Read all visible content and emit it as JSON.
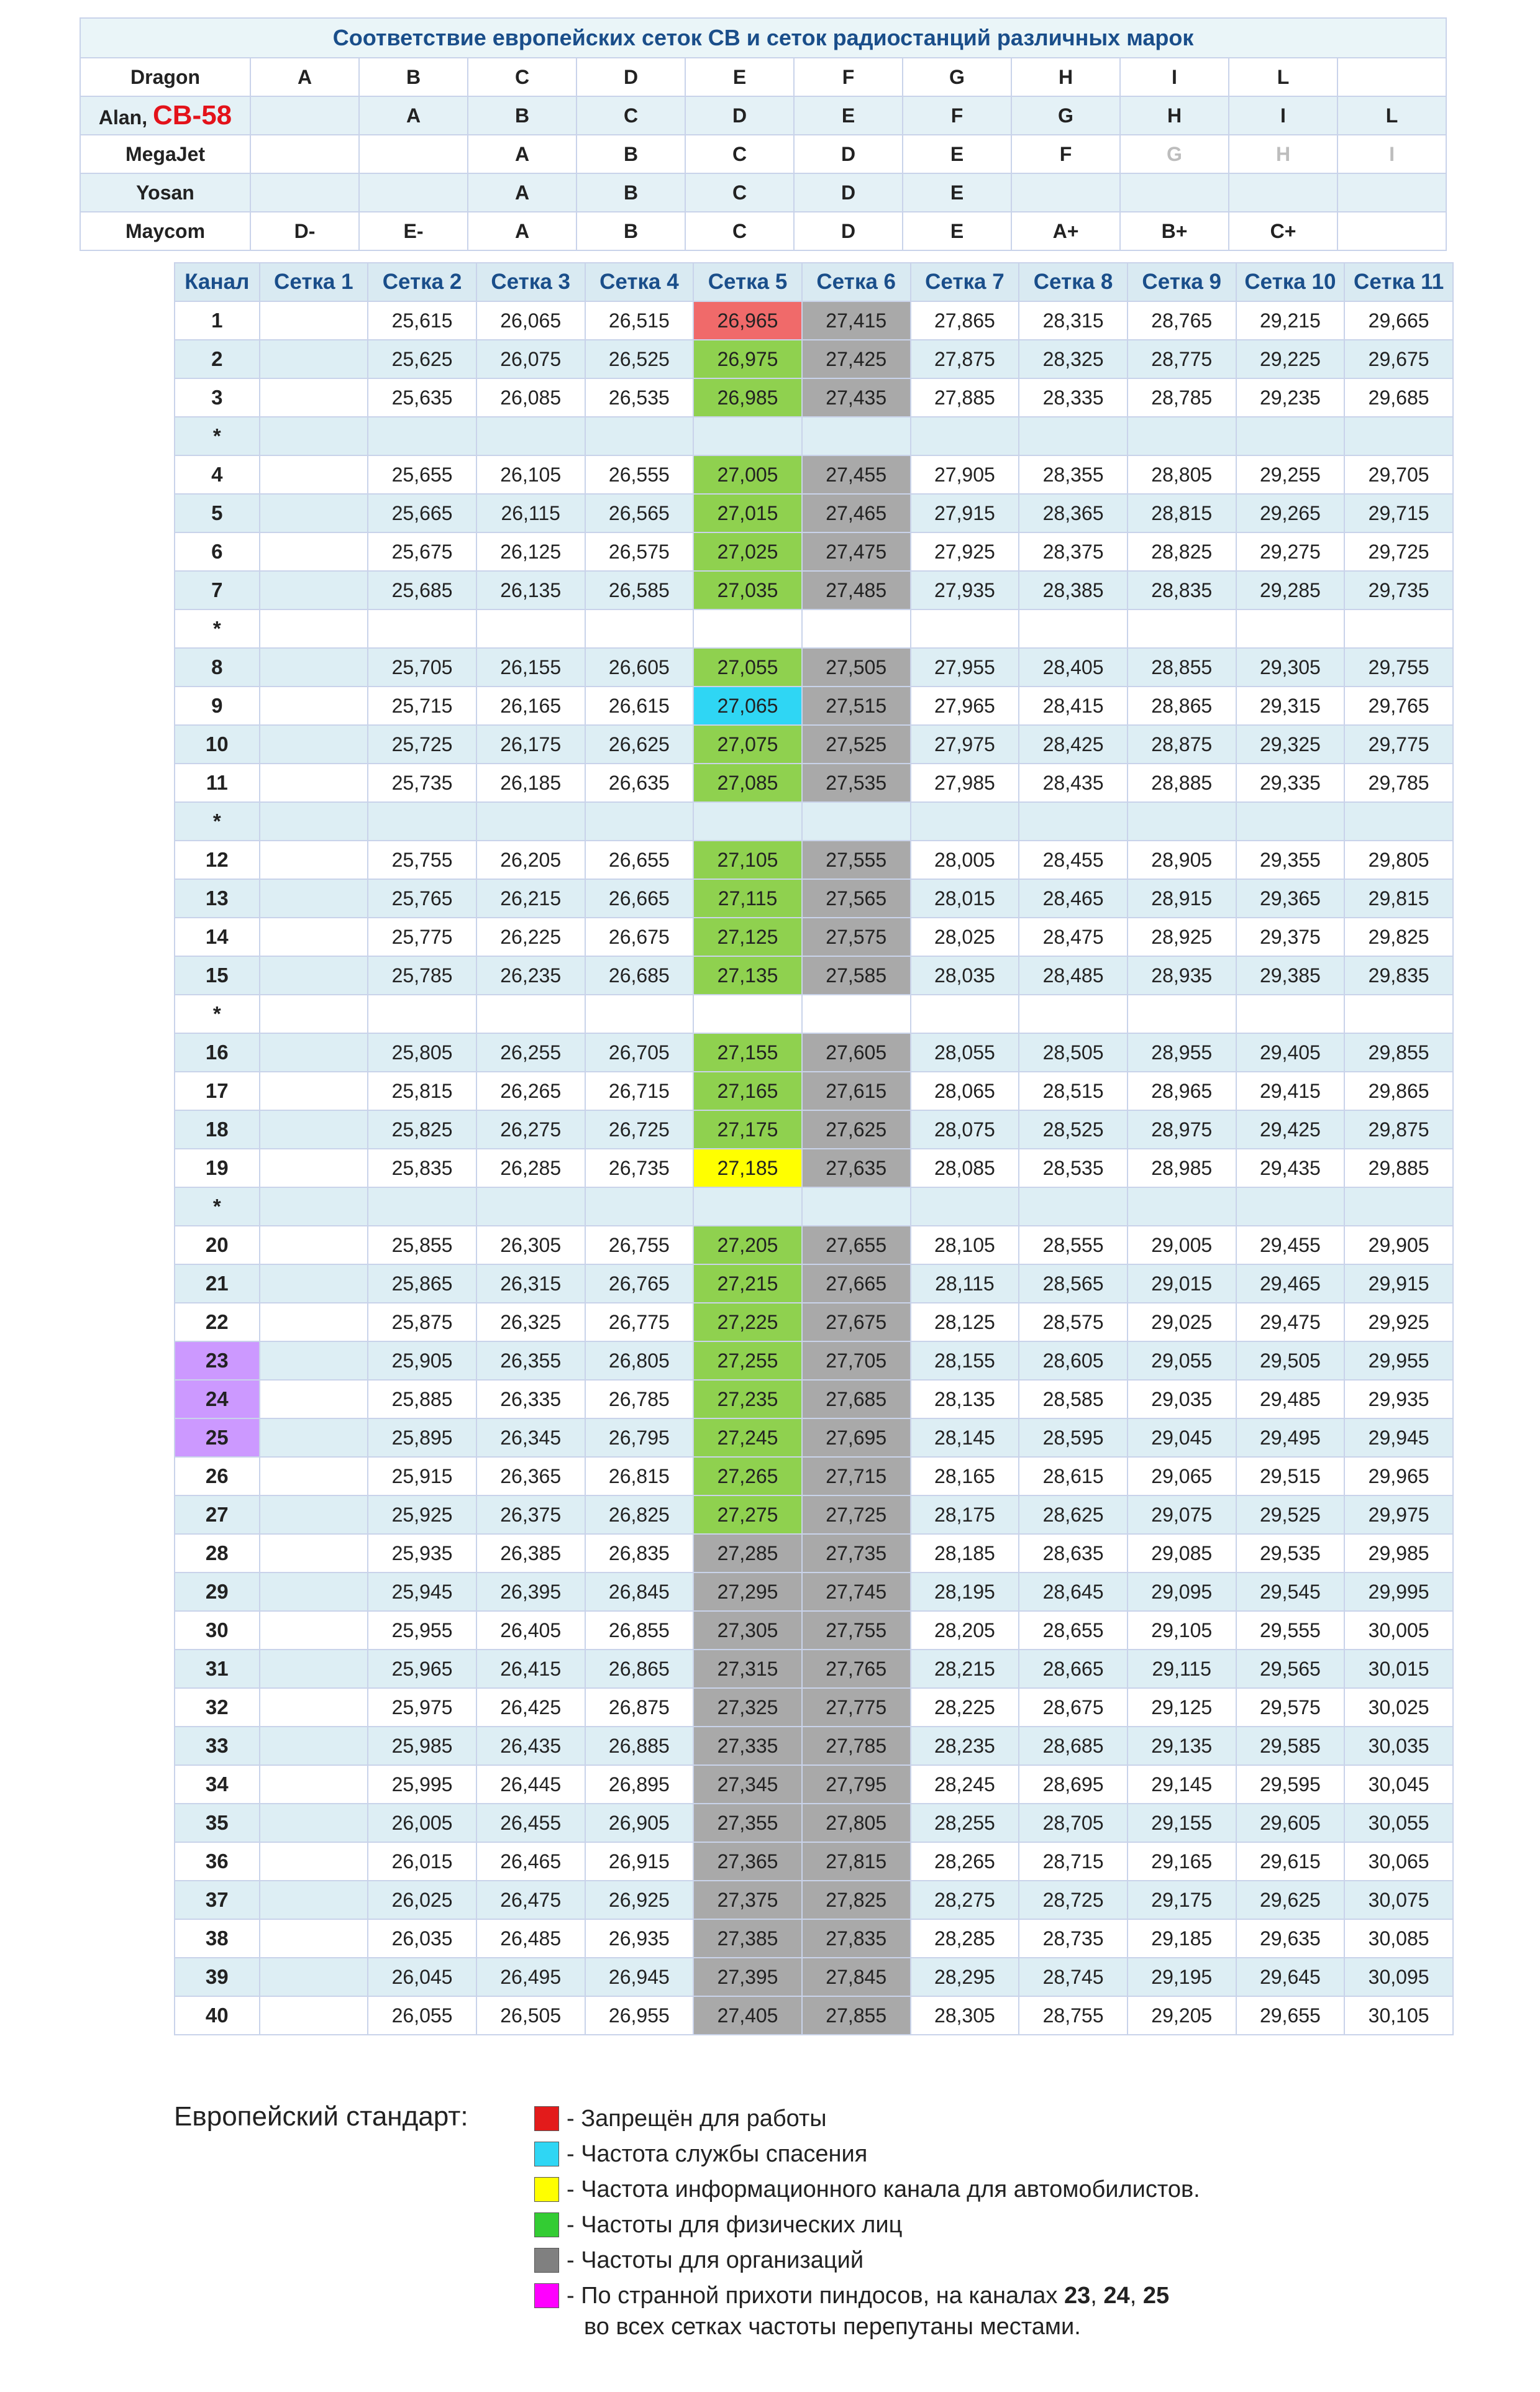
{
  "brand_table": {
    "title": "Соответствие европейских сеток СВ и сеток радиостанций различных марок",
    "rows": [
      {
        "brand": "Dragon",
        "cells": [
          "A",
          "B",
          "C",
          "D",
          "E",
          "F",
          "G",
          "H",
          "I",
          "L",
          ""
        ]
      },
      {
        "brand": "Alan, ",
        "brand_highlight": "CB-58",
        "cells": [
          "",
          "A",
          "B",
          "C",
          "D",
          "E",
          "F",
          "G",
          "H",
          "I",
          "L"
        ]
      },
      {
        "brand": "MegaJet",
        "cells": [
          "",
          "",
          "A",
          "B",
          "C",
          "D",
          "E",
          "F",
          "G",
          "H",
          "I"
        ]
      },
      {
        "brand": "Yosan",
        "cells": [
          "",
          "",
          "A",
          "B",
          "C",
          "D",
          "E",
          "",
          "",
          "",
          ""
        ]
      },
      {
        "brand": "Maycom",
        "cells": [
          "D-",
          "E-",
          "A",
          "B",
          "C",
          "D",
          "E",
          "A+",
          "B+",
          "C+",
          ""
        ]
      }
    ]
  },
  "grid": {
    "headers": [
      "Канал",
      "Сетка 1",
      "Сетка 2",
      "Сетка 3",
      "Сетка 4",
      "Сетка 5",
      "Сетка 6",
      "Сетка 7",
      "Сетка 8",
      "Сетка 9",
      "Сетка 10",
      "Сетка 11"
    ],
    "rows": [
      {
        "ch": "1",
        "v": [
          "",
          "25,615",
          "26,065",
          "26,515",
          "26,965",
          "27,415",
          "27,865",
          "28,315",
          "28,765",
          "29,215",
          "29,665"
        ],
        "c5": "red"
      },
      {
        "ch": "2",
        "v": [
          "",
          "25,625",
          "26,075",
          "26,525",
          "26,975",
          "27,425",
          "27,875",
          "28,325",
          "28,775",
          "29,225",
          "29,675"
        ],
        "c5": "green"
      },
      {
        "ch": "3",
        "v": [
          "",
          "25,635",
          "26,085",
          "26,535",
          "26,985",
          "27,435",
          "27,885",
          "28,335",
          "28,785",
          "29,235",
          "29,685"
        ],
        "c5": "green"
      },
      {
        "ch": "*",
        "v": [
          "",
          "",
          "",
          "",
          "",
          "",
          "",
          "",
          "",
          "",
          ""
        ],
        "sep": true
      },
      {
        "ch": "4",
        "v": [
          "",
          "25,655",
          "26,105",
          "26,555",
          "27,005",
          "27,455",
          "27,905",
          "28,355",
          "28,805",
          "29,255",
          "29,705"
        ],
        "c5": "green"
      },
      {
        "ch": "5",
        "v": [
          "",
          "25,665",
          "26,115",
          "26,565",
          "27,015",
          "27,465",
          "27,915",
          "28,365",
          "28,815",
          "29,265",
          "29,715"
        ],
        "c5": "green"
      },
      {
        "ch": "6",
        "v": [
          "",
          "25,675",
          "26,125",
          "26,575",
          "27,025",
          "27,475",
          "27,925",
          "28,375",
          "28,825",
          "29,275",
          "29,725"
        ],
        "c5": "green"
      },
      {
        "ch": "7",
        "v": [
          "",
          "25,685",
          "26,135",
          "26,585",
          "27,035",
          "27,485",
          "27,935",
          "28,385",
          "28,835",
          "29,285",
          "29,735"
        ],
        "c5": "green"
      },
      {
        "ch": "*",
        "v": [
          "",
          "",
          "",
          "",
          "",
          "",
          "",
          "",
          "",
          "",
          ""
        ],
        "sep": true
      },
      {
        "ch": "8",
        "v": [
          "",
          "25,705",
          "26,155",
          "26,605",
          "27,055",
          "27,505",
          "27,955",
          "28,405",
          "28,855",
          "29,305",
          "29,755"
        ],
        "c5": "green"
      },
      {
        "ch": "9",
        "v": [
          "",
          "25,715",
          "26,165",
          "26,615",
          "27,065",
          "27,515",
          "27,965",
          "28,415",
          "28,865",
          "29,315",
          "29,765"
        ],
        "c5": "cyan"
      },
      {
        "ch": "10",
        "v": [
          "",
          "25,725",
          "26,175",
          "26,625",
          "27,075",
          "27,525",
          "27,975",
          "28,425",
          "28,875",
          "29,325",
          "29,775"
        ],
        "c5": "green"
      },
      {
        "ch": "11",
        "v": [
          "",
          "25,735",
          "26,185",
          "26,635",
          "27,085",
          "27,535",
          "27,985",
          "28,435",
          "28,885",
          "29,335",
          "29,785"
        ],
        "c5": "green"
      },
      {
        "ch": "*",
        "v": [
          "",
          "",
          "",
          "",
          "",
          "",
          "",
          "",
          "",
          "",
          ""
        ],
        "sep": true
      },
      {
        "ch": "12",
        "v": [
          "",
          "25,755",
          "26,205",
          "26,655",
          "27,105",
          "27,555",
          "28,005",
          "28,455",
          "28,905",
          "29,355",
          "29,805"
        ],
        "c5": "green"
      },
      {
        "ch": "13",
        "v": [
          "",
          "25,765",
          "26,215",
          "26,665",
          "27,115",
          "27,565",
          "28,015",
          "28,465",
          "28,915",
          "29,365",
          "29,815"
        ],
        "c5": "green"
      },
      {
        "ch": "14",
        "v": [
          "",
          "25,775",
          "26,225",
          "26,675",
          "27,125",
          "27,575",
          "28,025",
          "28,475",
          "28,925",
          "29,375",
          "29,825"
        ],
        "c5": "green"
      },
      {
        "ch": "15",
        "v": [
          "",
          "25,785",
          "26,235",
          "26,685",
          "27,135",
          "27,585",
          "28,035",
          "28,485",
          "28,935",
          "29,385",
          "29,835"
        ],
        "c5": "green"
      },
      {
        "ch": "*",
        "v": [
          "",
          "",
          "",
          "",
          "",
          "",
          "",
          "",
          "",
          "",
          ""
        ],
        "sep": true
      },
      {
        "ch": "16",
        "v": [
          "",
          "25,805",
          "26,255",
          "26,705",
          "27,155",
          "27,605",
          "28,055",
          "28,505",
          "28,955",
          "29,405",
          "29,855"
        ],
        "c5": "green"
      },
      {
        "ch": "17",
        "v": [
          "",
          "25,815",
          "26,265",
          "26,715",
          "27,165",
          "27,615",
          "28,065",
          "28,515",
          "28,965",
          "29,415",
          "29,865"
        ],
        "c5": "green"
      },
      {
        "ch": "18",
        "v": [
          "",
          "25,825",
          "26,275",
          "26,725",
          "27,175",
          "27,625",
          "28,075",
          "28,525",
          "28,975",
          "29,425",
          "29,875"
        ],
        "c5": "green"
      },
      {
        "ch": "19",
        "v": [
          "",
          "25,835",
          "26,285",
          "26,735",
          "27,185",
          "27,635",
          "28,085",
          "28,535",
          "28,985",
          "29,435",
          "29,885"
        ],
        "c5": "yellow"
      },
      {
        "ch": "*",
        "v": [
          "",
          "",
          "",
          "",
          "",
          "",
          "",
          "",
          "",
          "",
          ""
        ],
        "sep": true
      },
      {
        "ch": "20",
        "v": [
          "",
          "25,855",
          "26,305",
          "26,755",
          "27,205",
          "27,655",
          "28,105",
          "28,555",
          "29,005",
          "29,455",
          "29,905"
        ],
        "c5": "green"
      },
      {
        "ch": "21",
        "v": [
          "",
          "25,865",
          "26,315",
          "26,765",
          "27,215",
          "27,665",
          "28,115",
          "28,565",
          "29,015",
          "29,465",
          "29,915"
        ],
        "c5": "green"
      },
      {
        "ch": "22",
        "v": [
          "",
          "25,875",
          "26,325",
          "26,775",
          "27,225",
          "27,675",
          "28,125",
          "28,575",
          "29,025",
          "29,475",
          "29,925"
        ],
        "c5": "green"
      },
      {
        "ch": "23",
        "v": [
          "",
          "25,905",
          "26,355",
          "26,805",
          "27,255",
          "27,705",
          "28,155",
          "28,605",
          "29,055",
          "29,505",
          "29,955"
        ],
        "c5": "green",
        "chc": "purple"
      },
      {
        "ch": "24",
        "v": [
          "",
          "25,885",
          "26,335",
          "26,785",
          "27,235",
          "27,685",
          "28,135",
          "28,585",
          "29,035",
          "29,485",
          "29,935"
        ],
        "c5": "green",
        "chc": "purple"
      },
      {
        "ch": "25",
        "v": [
          "",
          "25,895",
          "26,345",
          "26,795",
          "27,245",
          "27,695",
          "28,145",
          "28,595",
          "29,045",
          "29,495",
          "29,945"
        ],
        "c5": "green",
        "chc": "purple"
      },
      {
        "ch": "26",
        "v": [
          "",
          "25,915",
          "26,365",
          "26,815",
          "27,265",
          "27,715",
          "28,165",
          "28,615",
          "29,065",
          "29,515",
          "29,965"
        ],
        "c5": "green"
      },
      {
        "ch": "27",
        "v": [
          "",
          "25,925",
          "26,375",
          "26,825",
          "27,275",
          "27,725",
          "28,175",
          "28,625",
          "29,075",
          "29,525",
          "29,975"
        ],
        "c5": "green"
      },
      {
        "ch": "28",
        "v": [
          "",
          "25,935",
          "26,385",
          "26,835",
          "27,285",
          "27,735",
          "28,185",
          "28,635",
          "29,085",
          "29,535",
          "29,985"
        ],
        "c5": "gray"
      },
      {
        "ch": "29",
        "v": [
          "",
          "25,945",
          "26,395",
          "26,845",
          "27,295",
          "27,745",
          "28,195",
          "28,645",
          "29,095",
          "29,545",
          "29,995"
        ],
        "c5": "gray"
      },
      {
        "ch": "30",
        "v": [
          "",
          "25,955",
          "26,405",
          "26,855",
          "27,305",
          "27,755",
          "28,205",
          "28,655",
          "29,105",
          "29,555",
          "30,005"
        ],
        "c5": "gray"
      },
      {
        "ch": "31",
        "v": [
          "",
          "25,965",
          "26,415",
          "26,865",
          "27,315",
          "27,765",
          "28,215",
          "28,665",
          "29,115",
          "29,565",
          "30,015"
        ],
        "c5": "gray"
      },
      {
        "ch": "32",
        "v": [
          "",
          "25,975",
          "26,425",
          "26,875",
          "27,325",
          "27,775",
          "28,225",
          "28,675",
          "29,125",
          "29,575",
          "30,025"
        ],
        "c5": "gray"
      },
      {
        "ch": "33",
        "v": [
          "",
          "25,985",
          "26,435",
          "26,885",
          "27,335",
          "27,785",
          "28,235",
          "28,685",
          "29,135",
          "29,585",
          "30,035"
        ],
        "c5": "gray"
      },
      {
        "ch": "34",
        "v": [
          "",
          "25,995",
          "26,445",
          "26,895",
          "27,345",
          "27,795",
          "28,245",
          "28,695",
          "29,145",
          "29,595",
          "30,045"
        ],
        "c5": "gray"
      },
      {
        "ch": "35",
        "v": [
          "",
          "26,005",
          "26,455",
          "26,905",
          "27,355",
          "27,805",
          "28,255",
          "28,705",
          "29,155",
          "29,605",
          "30,055"
        ],
        "c5": "gray"
      },
      {
        "ch": "36",
        "v": [
          "",
          "26,015",
          "26,465",
          "26,915",
          "27,365",
          "27,815",
          "28,265",
          "28,715",
          "29,165",
          "29,615",
          "30,065"
        ],
        "c5": "gray"
      },
      {
        "ch": "37",
        "v": [
          "",
          "26,025",
          "26,475",
          "26,925",
          "27,375",
          "27,825",
          "28,275",
          "28,725",
          "29,175",
          "29,625",
          "30,075"
        ],
        "c5": "gray"
      },
      {
        "ch": "38",
        "v": [
          "",
          "26,035",
          "26,485",
          "26,935",
          "27,385",
          "27,835",
          "28,285",
          "28,735",
          "29,185",
          "29,635",
          "30,085"
        ],
        "c5": "gray"
      },
      {
        "ch": "39",
        "v": [
          "",
          "26,045",
          "26,495",
          "26,945",
          "27,395",
          "27,845",
          "28,295",
          "28,745",
          "29,195",
          "29,645",
          "30,095"
        ],
        "c5": "gray"
      },
      {
        "ch": "40",
        "v": [
          "",
          "26,055",
          "26,505",
          "26,955",
          "27,405",
          "27,855",
          "28,305",
          "28,755",
          "29,205",
          "29,655",
          "30,105"
        ],
        "c5": "gray"
      }
    ]
  },
  "legend": {
    "title": "Европейский стандарт:",
    "items": [
      {
        "color": "#e31b1b",
        "text": "- Запрещён для работы"
      },
      {
        "color": "#2fd6f4",
        "text": "- Частота службы спасения"
      },
      {
        "color": "#ffff00",
        "text": "- Частота информационного канала для автомобилистов."
      },
      {
        "color": "#33cc33",
        "text": "- Частоты для физических лиц"
      },
      {
        "color": "#808080",
        "text": "- Частоты для организаций"
      },
      {
        "color": "#ff00ff",
        "text_before": "- По странной прихоти пиндосов, на каналах ",
        "bold1": "23",
        "sep1": ", ",
        "bold2": "24",
        "sep2": ", ",
        "bold3": "25",
        "continuation": "во всех сетках частоты перепутаны местами."
      }
    ]
  }
}
